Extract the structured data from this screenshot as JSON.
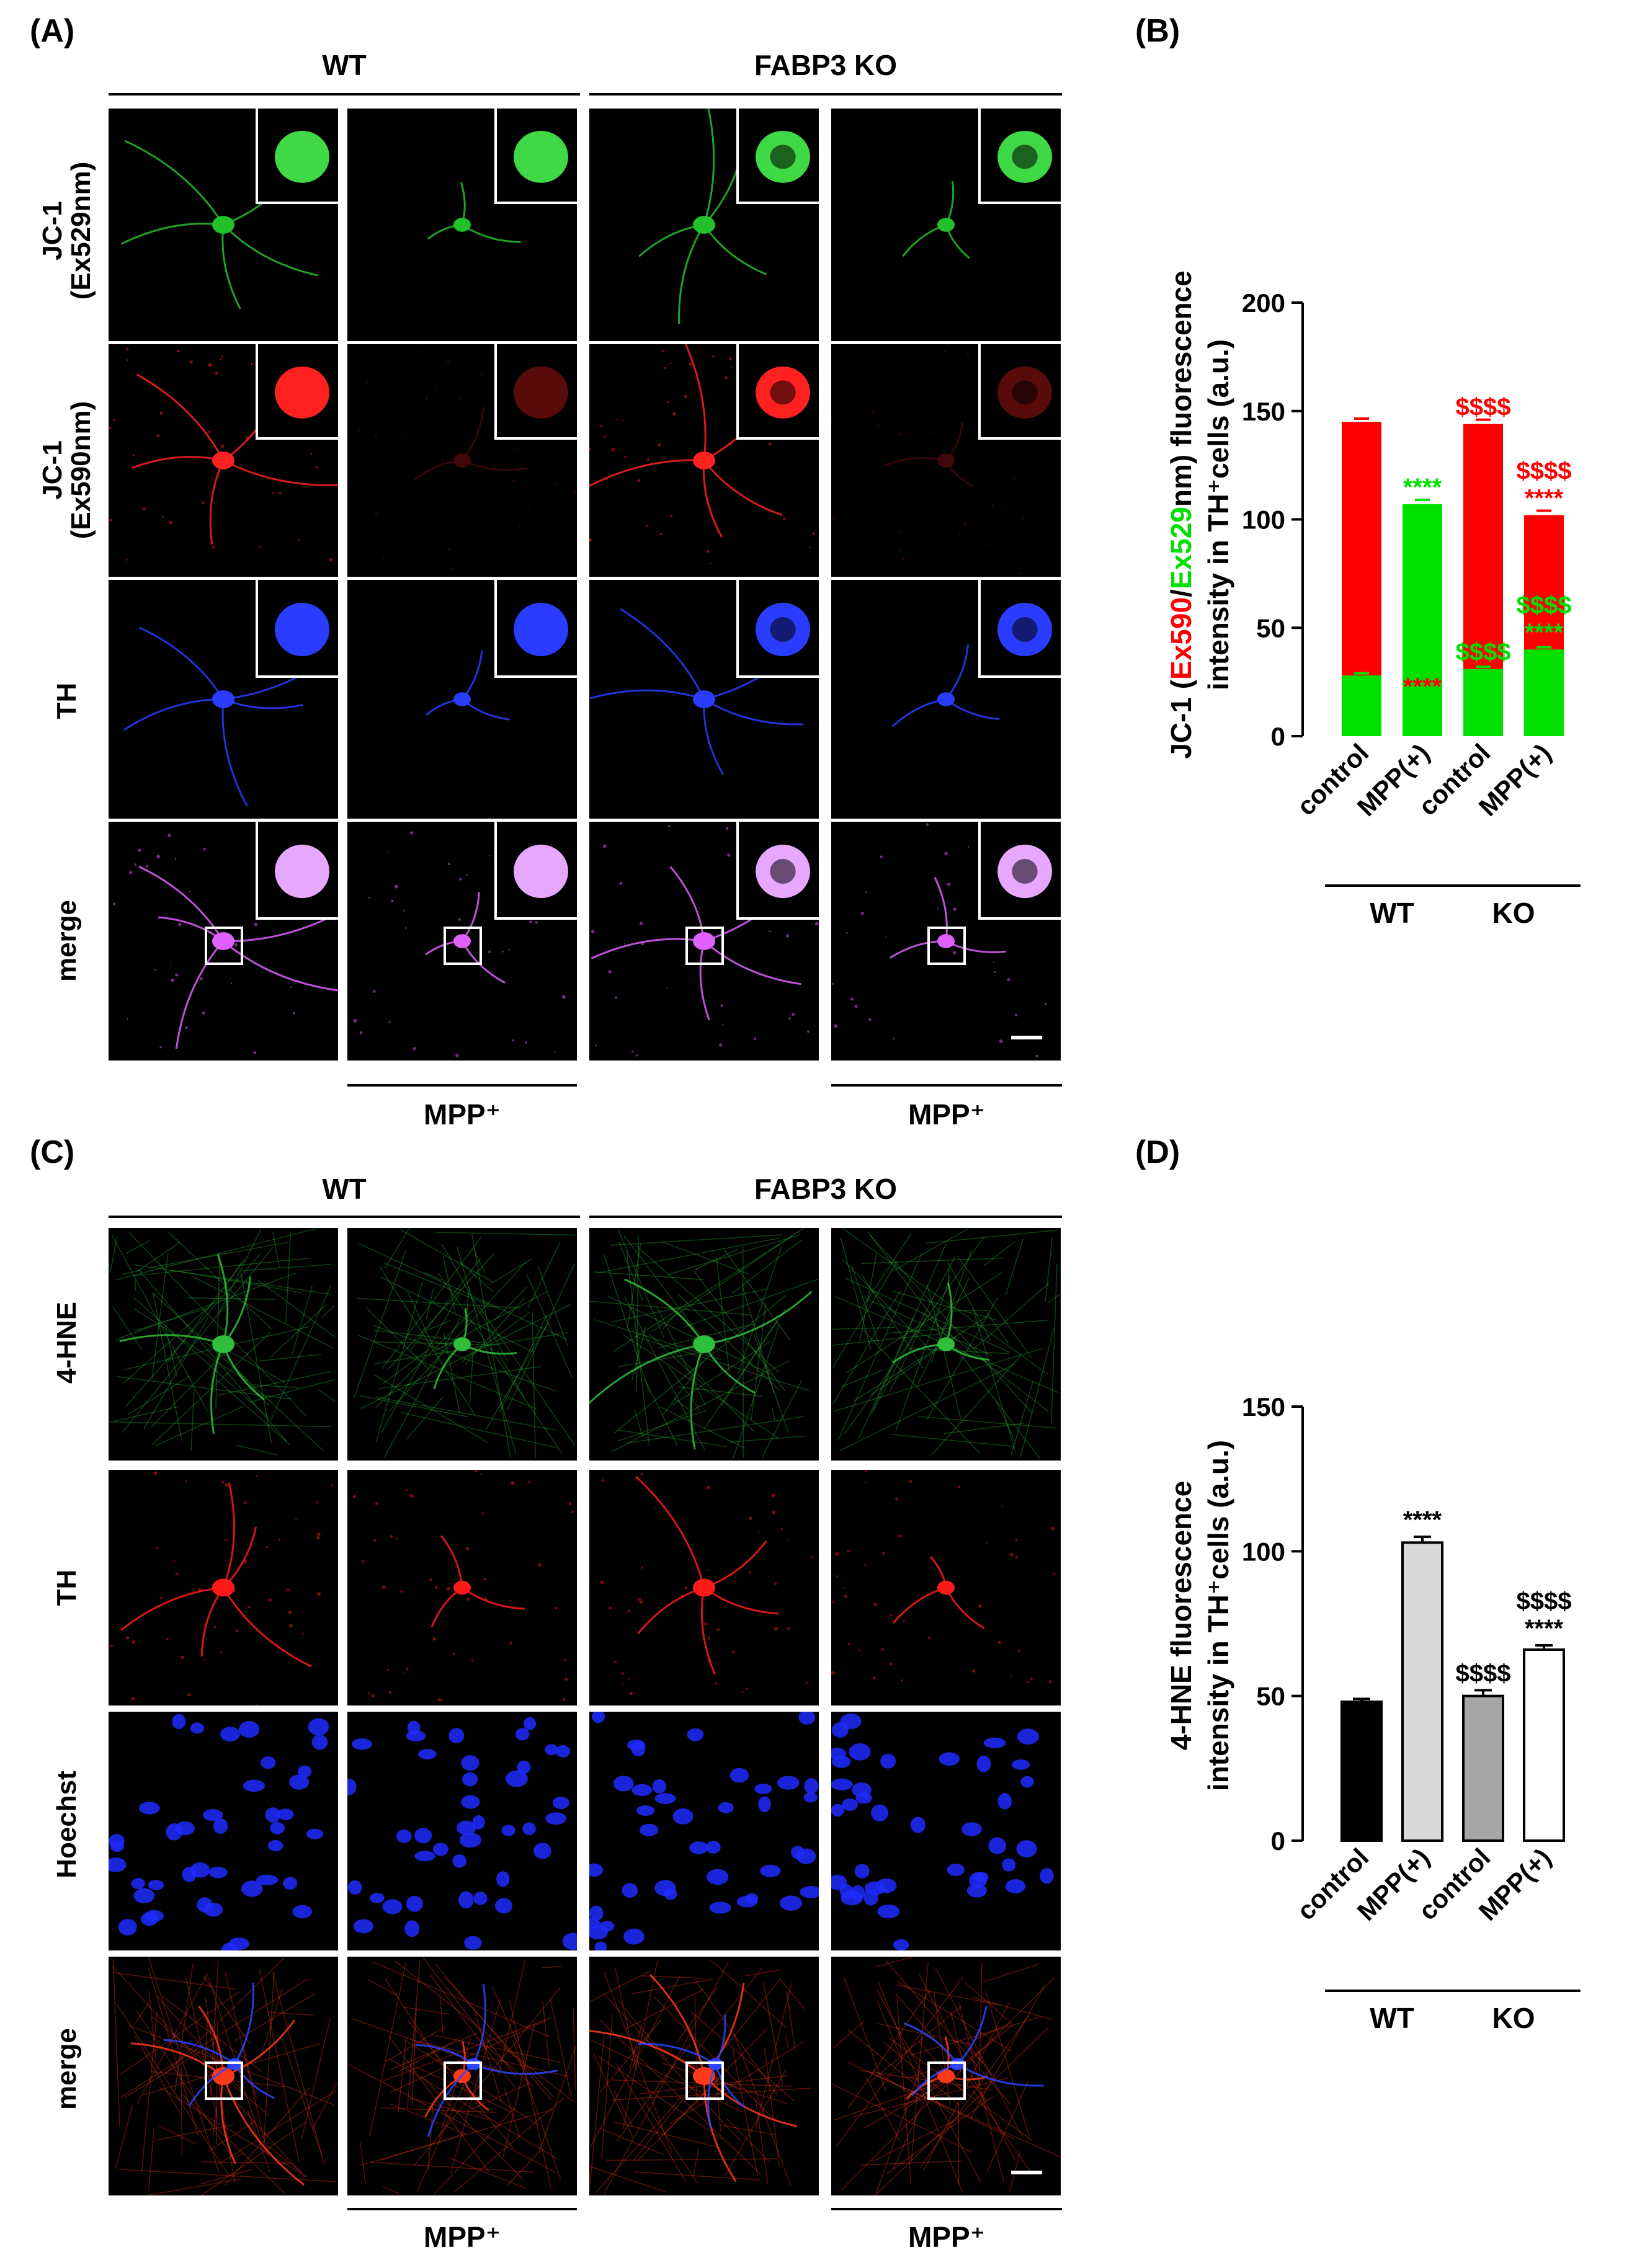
{
  "panel_a": {
    "label": "(A)",
    "groups": [
      "WT",
      "FABP3 KO"
    ],
    "rows": [
      "JC-1\n(Ex529nm)",
      "JC-1\n(Ex590nm)",
      "TH",
      "merge"
    ],
    "treatment_label": "MPP⁺"
  },
  "panel_b": {
    "label": "(B)",
    "ylabel_prefix": "JC-1 (",
    "ylabel_red": "Ex590",
    "ylabel_slash": "/",
    "ylabel_green": "Ex529",
    "ylabel_suffix": "nm) fluorescence",
    "ylabel_line2": "intensity in TH⁺cells (a.u.)",
    "colors": {
      "red": "#ff0000",
      "green": "#00e000"
    }
  },
  "panel_c": {
    "label": "(C)",
    "groups": [
      "WT",
      "FABP3 KO"
    ],
    "rows": [
      "4-HNE",
      "TH",
      "Hoechst",
      "merge"
    ],
    "treatment_label": "MPP⁺"
  },
  "panel_d": {
    "label": "(D)",
    "ylabel_line1": "4-HNE fluorescence",
    "ylabel_line2": "intensity in TH⁺cells (a.u.)"
  },
  "chart_data": [
    {
      "id": "B",
      "type": "bar",
      "stacked": true,
      "categories": [
        "control",
        "MPP(+)",
        "control",
        "MPP(+)"
      ],
      "groups": [
        {
          "label": "WT",
          "categories": [
            0,
            1
          ]
        },
        {
          "label": "KO",
          "categories": [
            2,
            3
          ]
        }
      ],
      "ylim": [
        0,
        200
      ],
      "yticks": [
        "0",
        "50",
        "100",
        "150",
        "200"
      ],
      "series": [
        {
          "name": "Ex590",
          "color": "#ff0000",
          "values": [
            145,
            15,
            144,
            102
          ],
          "errors": [
            1.5,
            1,
            2,
            2
          ]
        },
        {
          "name": "Ex529",
          "color": "#00e000",
          "values": [
            28,
            107,
            31,
            40
          ],
          "errors": [
            1,
            2,
            1,
            1
          ]
        }
      ],
      "annotations": [
        {
          "category": 1,
          "value": 107,
          "lines": [
            "****"
          ],
          "color": "#00e000"
        },
        {
          "category": 1,
          "value": 15,
          "lines": [
            "****"
          ],
          "color": "#ff0000"
        },
        {
          "category": 2,
          "value": 144,
          "lines": [
            "$$$$"
          ],
          "color": "#ff0000"
        },
        {
          "category": 2,
          "value": 31,
          "lines": [
            "$$$$"
          ],
          "color": "#00e000"
        },
        {
          "category": 3,
          "value": 102,
          "lines": [
            "$$$$",
            "****"
          ],
          "color": "#ff0000"
        },
        {
          "category": 3,
          "value": 40,
          "lines": [
            "$$$$",
            "****"
          ],
          "color": "#00e000"
        }
      ]
    },
    {
      "id": "D",
      "type": "bar",
      "categories": [
        "control",
        "MPP(+)",
        "control",
        "MPP(+)"
      ],
      "groups": [
        {
          "label": "WT",
          "categories": [
            0,
            1
          ]
        },
        {
          "label": "KO",
          "categories": [
            2,
            3
          ]
        }
      ],
      "ylim": [
        0,
        150
      ],
      "yticks": [
        "0",
        "50",
        "100",
        "150"
      ],
      "values": [
        48,
        103,
        50,
        66
      ],
      "errors": [
        1,
        2,
        2,
        1.5
      ],
      "bar_colors": [
        "#000000",
        "#d9d9d9",
        "#a6a6a6",
        "#ffffff"
      ],
      "annotations": [
        {
          "category": 1,
          "lines": [
            "****"
          ],
          "color": "#000000"
        },
        {
          "category": 2,
          "lines": [
            "$$$$"
          ],
          "color": "#000000"
        },
        {
          "category": 3,
          "lines": [
            "$$$$",
            "****"
          ],
          "color": "#000000"
        }
      ]
    }
  ]
}
